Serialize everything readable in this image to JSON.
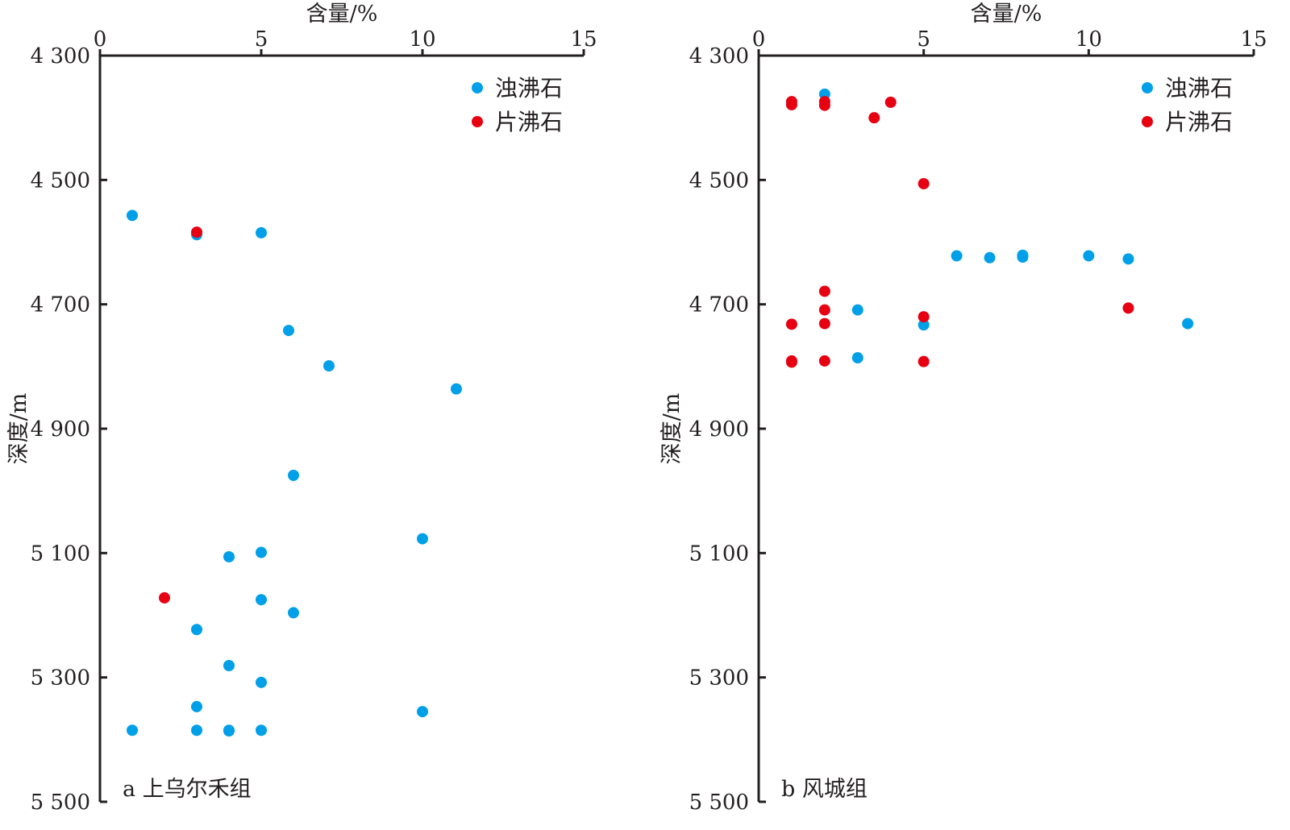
{
  "chart_data": [
    {
      "type": "scatter",
      "panel_label": "a 上乌尔禾组",
      "xlabel": "含量/%",
      "ylabel": "深度/m",
      "x_axis_position": "top",
      "y_inverted": true,
      "xlim": [
        0,
        15
      ],
      "ylim": [
        4300,
        5500
      ],
      "x_ticks": [
        0,
        5,
        10,
        15
      ],
      "x_tick_labels": [
        "0",
        "5",
        "10",
        "15"
      ],
      "y_ticks": [
        4300,
        4500,
        4700,
        4900,
        5100,
        5300,
        5500
      ],
      "y_tick_labels": [
        "4 300",
        "4 500",
        "4 700",
        "4 900",
        "5 100",
        "5 300",
        "5 500"
      ],
      "legend_placement": "top-right",
      "series": [
        {
          "name": "浊沸石",
          "color": "#00a0e9",
          "points": [
            [
              1,
              4557
            ],
            [
              3,
              4588
            ],
            [
              5,
              4585
            ],
            [
              5.85,
              4742
            ],
            [
              7.1,
              4799
            ],
            [
              11.05,
              4836
            ],
            [
              6,
              4975
            ],
            [
              10,
              5077
            ],
            [
              4,
              5106
            ],
            [
              5,
              5099
            ],
            [
              5,
              5175
            ],
            [
              6,
              5196
            ],
            [
              3,
              5223
            ],
            [
              4,
              5281
            ],
            [
              5,
              5308
            ],
            [
              3,
              5347
            ],
            [
              10,
              5355
            ],
            [
              1,
              5385
            ],
            [
              3,
              5385
            ],
            [
              4,
              5385
            ],
            [
              4,
              5386
            ],
            [
              5,
              5385
            ]
          ]
        },
        {
          "name": "片沸石",
          "color": "#e60012",
          "points": [
            [
              3,
              4584
            ],
            [
              2,
              5172
            ]
          ]
        }
      ]
    },
    {
      "type": "scatter",
      "panel_label": "b 风城组",
      "xlabel": "含量/%",
      "ylabel": "深度/m",
      "x_axis_position": "top",
      "y_inverted": true,
      "xlim": [
        0,
        15
      ],
      "ylim": [
        4300,
        5500
      ],
      "x_ticks": [
        0,
        5,
        10,
        15
      ],
      "x_tick_labels": [
        "0",
        "5",
        "10",
        "15"
      ],
      "y_ticks": [
        4300,
        4500,
        4700,
        4900,
        5100,
        5300,
        5500
      ],
      "y_tick_labels": [
        "4 300",
        "4 500",
        "4 700",
        "4 900",
        "5 100",
        "5 300",
        "5 500"
      ],
      "legend_placement": "top-right",
      "series": [
        {
          "name": "浊沸石",
          "color": "#00a0e9",
          "points": [
            [
              2,
              4362
            ],
            [
              6,
              4622
            ],
            [
              7,
              4625
            ],
            [
              8,
              4621
            ],
            [
              8,
              4624
            ],
            [
              10,
              4622
            ],
            [
              11.2,
              4627
            ],
            [
              3,
              4709
            ],
            [
              5,
              4733
            ],
            [
              13,
              4731
            ],
            [
              3,
              4786
            ]
          ]
        },
        {
          "name": "片沸石",
          "color": "#e60012",
          "points": [
            [
              1,
              4374
            ],
            [
              1,
              4379
            ],
            [
              2,
              4374
            ],
            [
              2,
              4380
            ],
            [
              4,
              4375
            ],
            [
              3.5,
              4400
            ],
            [
              5,
              4506
            ],
            [
              2,
              4679
            ],
            [
              2,
              4709
            ],
            [
              11.2,
              4706
            ],
            [
              5,
              4720
            ],
            [
              1,
              4732
            ],
            [
              2,
              4731
            ],
            [
              1,
              4791
            ],
            [
              1,
              4793
            ],
            [
              2,
              4791
            ],
            [
              5,
              4792
            ]
          ]
        }
      ]
    }
  ]
}
